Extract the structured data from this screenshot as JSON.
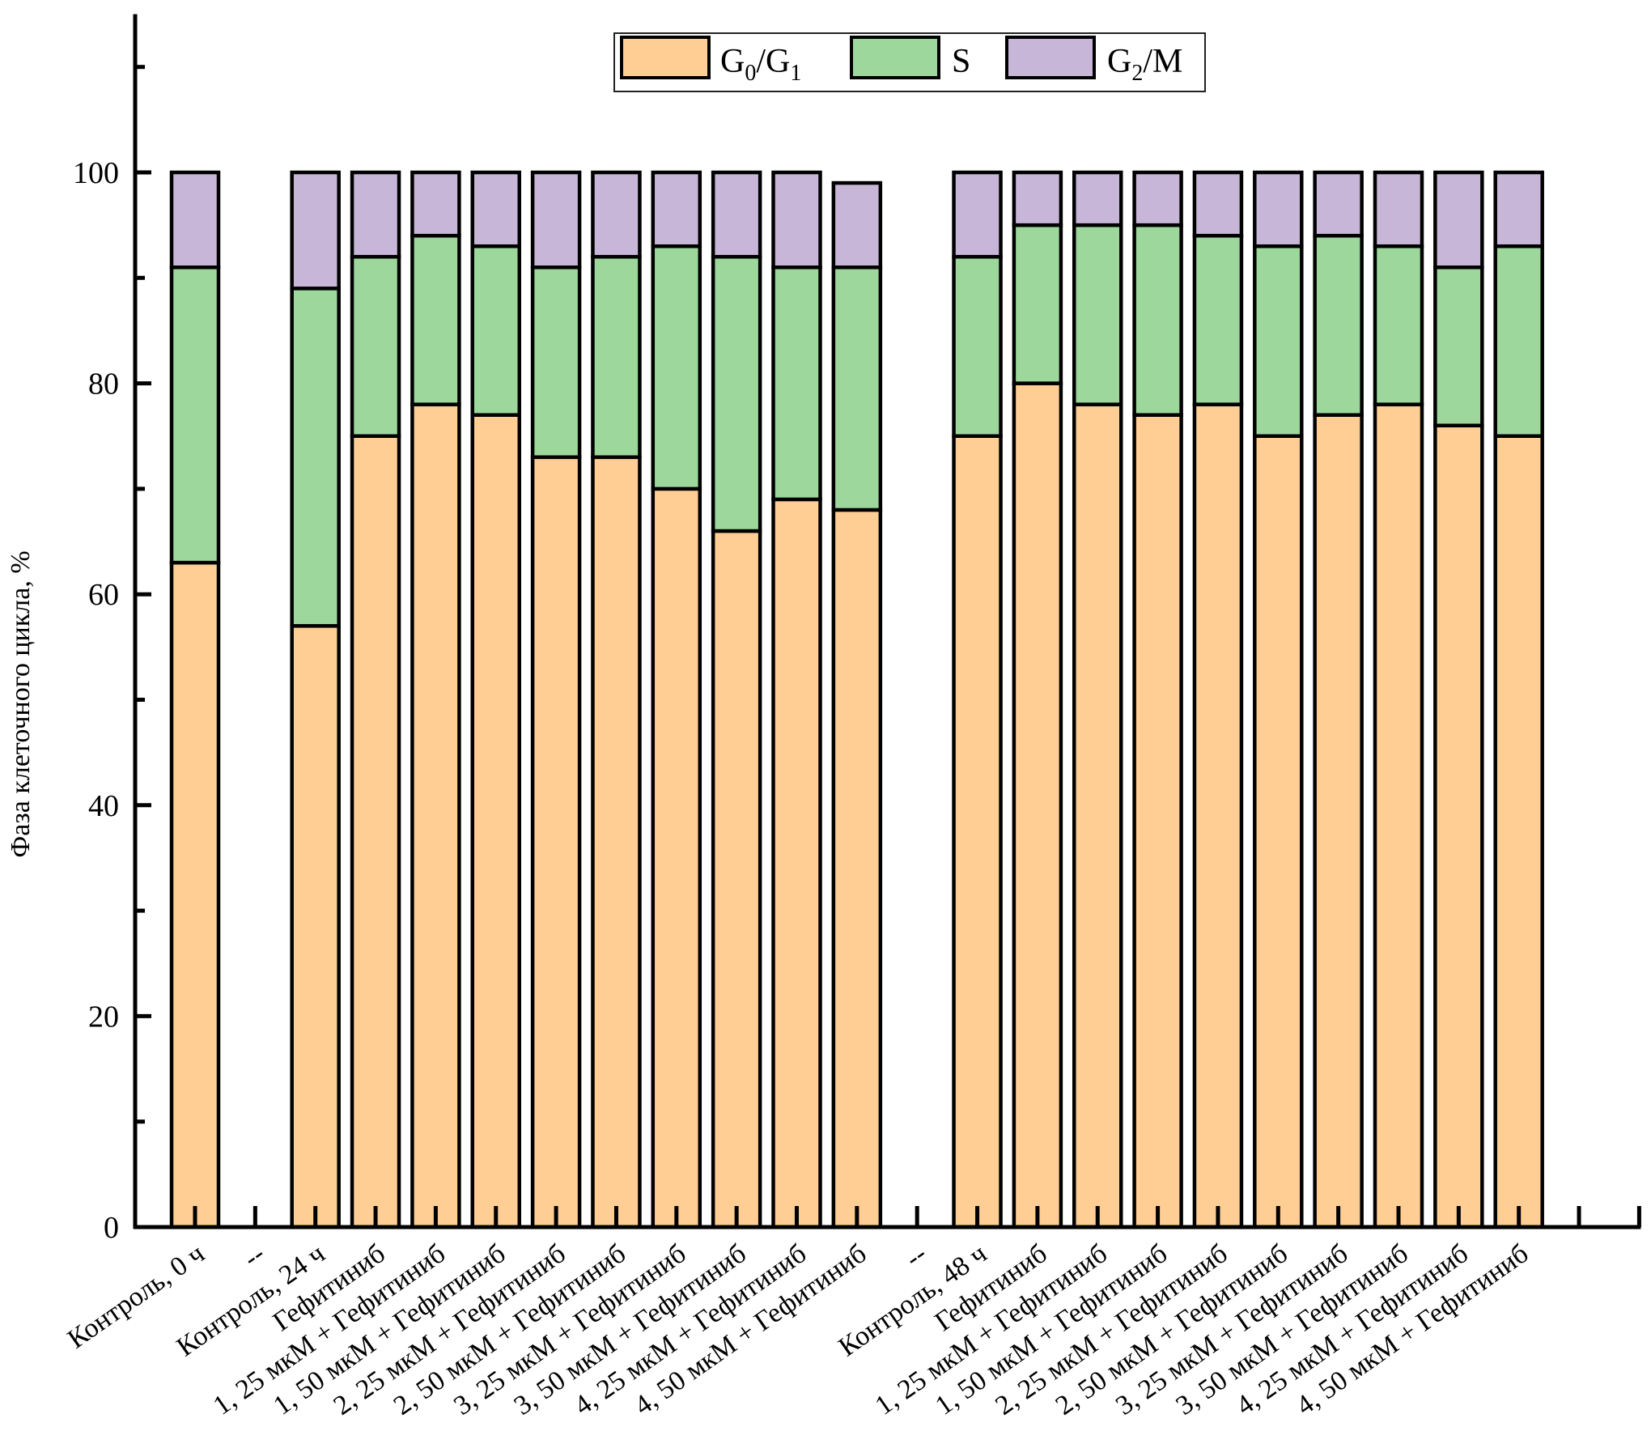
{
  "chart_data": {
    "type": "bar",
    "stacked": true,
    "title": "",
    "xlabel": "",
    "ylabel": "Фаза клеточного цикла, %",
    "ylim": [
      0,
      115
    ],
    "yticks": [
      0,
      20,
      40,
      60,
      80,
      100
    ],
    "yminor_ticks": [
      10,
      30,
      50,
      70,
      90,
      110
    ],
    "grid": false,
    "legend_position": "top-center",
    "categories": [
      "Контроль, 0 ч",
      "--",
      "Контроль, 24 ч",
      "Гефитиниб",
      "1, 25 мкМ + Гефитиниб",
      "1, 50 мкМ + Гефитиниб",
      "2, 25 мкМ + Гефитиниб",
      "2, 50 мкМ + Гефитиниб",
      "3, 25 мкМ + Гефитиниб",
      "3, 50 мкМ + Гефитиниб",
      "4, 25 мкМ + Гефитиниб",
      "4, 50 мкМ + Гефитиниб",
      "--",
      "Контроль, 48 ч",
      "Гефитиниб",
      "1, 25 мкМ + Гефитиниб",
      "1, 50 мкМ + Гефитиниб",
      "2, 25 мкМ + Гефитиниб",
      "2, 50 мкМ + Гефитиниб",
      "3, 25 мкМ + Гефитиниб",
      "3, 50 мкМ + Гефитиниб",
      "4, 25 мкМ + Гефитиниб",
      "4, 50 мкМ + Гефитиниб",
      ""
    ],
    "series": [
      {
        "name": "G0/G1",
        "label_main": "G",
        "label_sub1": "0",
        "label_mid": "/G",
        "label_sub2": "1",
        "color": "#FECE94",
        "values": [
          63,
          null,
          57,
          75,
          78,
          77,
          73,
          73,
          70,
          66,
          69,
          68,
          null,
          75,
          80,
          78,
          77,
          78,
          75,
          77,
          78,
          76,
          75,
          null
        ]
      },
      {
        "name": "S",
        "label_main": "S",
        "label_sub1": "",
        "label_mid": "",
        "label_sub2": "",
        "color": "#9DD79C",
        "values": [
          28,
          null,
          32,
          17,
          16,
          16,
          18,
          19,
          23,
          26,
          22,
          23,
          null,
          17,
          15,
          17,
          18,
          16,
          18,
          17,
          15,
          15,
          18,
          null
        ]
      },
      {
        "name": "G2/M",
        "label_main": "G",
        "label_sub1": "2",
        "label_mid": "/M",
        "label_sub2": "",
        "color": "#C7B6D8",
        "values": [
          9,
          null,
          11,
          8,
          6,
          7,
          9,
          8,
          7,
          8,
          9,
          8,
          null,
          8,
          5,
          5,
          5,
          6,
          7,
          6,
          7,
          9,
          7,
          null
        ]
      }
    ]
  }
}
